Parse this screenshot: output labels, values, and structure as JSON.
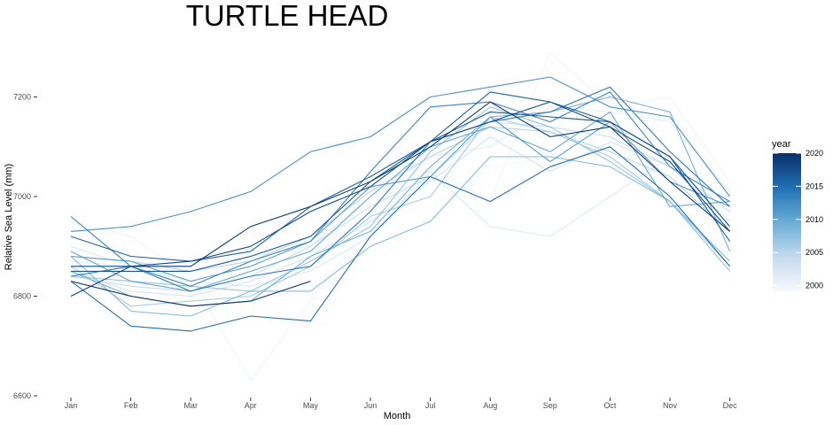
{
  "chart_data": {
    "type": "line",
    "title": "TURTLE HEAD",
    "xlabel": "Month",
    "ylabel": "Relative Sea Level (mm)",
    "categories": [
      "Jan",
      "Feb",
      "Mar",
      "Apr",
      "May",
      "Jun",
      "Jul",
      "Aug",
      "Sep",
      "Oct",
      "Nov",
      "Dec"
    ],
    "y_ticks": [
      6600,
      6800,
      7000,
      7200
    ],
    "ylim": [
      6600,
      7300
    ],
    "grid": false,
    "legend": {
      "title": "year",
      "position": "right",
      "ticks": [
        2000,
        2005,
        2010,
        2015,
        2020
      ],
      "range": [
        1999,
        2020
      ],
      "color_low": "#f7fbff",
      "color_high": "#08306b"
    },
    "series": [
      {
        "year": 1999,
        "values": [
          6860,
          6840,
          6830,
          6810,
          6830,
          6860,
          6960,
          7060,
          7080,
          7160,
          7150,
          7010
        ]
      },
      {
        "year": 2000,
        "values": [
          6950,
          6920,
          6840,
          6630,
          6790,
          6950,
          7060,
          6990,
          7290,
          7180,
          7200,
          7030
        ]
      },
      {
        "year": 2001,
        "values": [
          6870,
          6860,
          6850,
          6880,
          6900,
          7000,
          7080,
          7100,
          7180,
          7170,
          7150,
          7010
        ]
      },
      {
        "year": 2002,
        "values": [
          6900,
          6860,
          6830,
          6820,
          6850,
          6920,
          7050,
          6940,
          6920,
          7000,
          7080,
          6940
        ]
      },
      {
        "year": 2003,
        "values": [
          6850,
          6810,
          6800,
          6830,
          6880,
          6950,
          7030,
          7120,
          7050,
          7110,
          7060,
          6950
        ]
      },
      {
        "year": 2004,
        "values": [
          6840,
          6820,
          6810,
          6840,
          6900,
          6980,
          7040,
          7150,
          7140,
          7120,
          7060,
          6970
        ]
      },
      {
        "year": 2005,
        "values": [
          6880,
          6870,
          6850,
          6870,
          6920,
          7010,
          7080,
          7140,
          7130,
          7090,
          7040,
          6930
        ]
      },
      {
        "year": 2006,
        "values": [
          6860,
          6780,
          6790,
          6800,
          6860,
          6960,
          7000,
          7160,
          7130,
          7080,
          6990,
          6860
        ]
      },
      {
        "year": 2007,
        "values": [
          6840,
          6830,
          6820,
          6810,
          6870,
          6940,
          7090,
          7180,
          7140,
          7070,
          6990,
          6850
        ]
      },
      {
        "year": 2008,
        "values": [
          6880,
          6770,
          6760,
          6810,
          6810,
          6900,
          6950,
          7080,
          7080,
          7060,
          6990,
          6870
        ]
      },
      {
        "year": 2009,
        "values": [
          6850,
          6800,
          6780,
          6790,
          6880,
          6930,
          7060,
          7160,
          7170,
          7200,
          7170,
          6890
        ]
      },
      {
        "year": 2010,
        "values": [
          6890,
          6830,
          6810,
          6850,
          6890,
          7000,
          7100,
          7140,
          7090,
          7170,
          6980,
          6990
        ]
      },
      {
        "year": 2011,
        "values": [
          6880,
          6870,
          6830,
          6860,
          6910,
          7020,
          7040,
          7160,
          7070,
          7150,
          7030,
          6980
        ]
      },
      {
        "year": 2012,
        "values": [
          6930,
          6940,
          6970,
          7010,
          7090,
          7120,
          7200,
          7220,
          7240,
          7180,
          7160,
          7000
        ]
      },
      {
        "year": 2013,
        "values": [
          6960,
          6860,
          6820,
          6870,
          6910,
          7050,
          7180,
          7190,
          7150,
          7210,
          7060,
          6990
        ]
      },
      {
        "year": 2014,
        "values": [
          6840,
          6860,
          6810,
          6840,
          6860,
          6970,
          7110,
          7150,
          7170,
          7220,
          7090,
          6980
        ]
      },
      {
        "year": 2015,
        "values": [
          6830,
          6740,
          6730,
          6760,
          6750,
          6920,
          7040,
          6990,
          7060,
          7100,
          7000,
          6860
        ]
      },
      {
        "year": 2016,
        "values": [
          6920,
          6880,
          6870,
          6890,
          6980,
          7040,
          7110,
          7210,
          7190,
          7150,
          7080,
          6910
        ]
      },
      {
        "year": 2017,
        "values": [
          6850,
          6850,
          6850,
          6880,
          6920,
          7030,
          7110,
          7170,
          7160,
          7150,
          7080,
          6940
        ]
      },
      {
        "year": 2018,
        "values": [
          6860,
          6860,
          6870,
          6900,
          6970,
          7020,
          7110,
          7150,
          7190,
          7140,
          7070,
          6930
        ]
      },
      {
        "year": 2019,
        "values": [
          6800,
          6860,
          6860,
          6940,
          6980,
          7030,
          7100,
          7190,
          7120,
          7140,
          7030,
          6930
        ]
      },
      {
        "year": 2020,
        "values": [
          6830,
          6800,
          6780,
          6790,
          6830,
          null,
          null,
          null,
          null,
          null,
          null,
          null
        ]
      }
    ]
  }
}
